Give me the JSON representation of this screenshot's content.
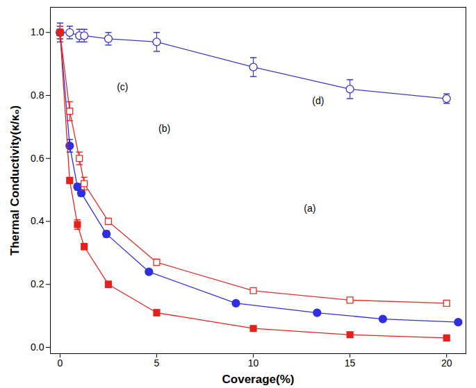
{
  "chart_data": {
    "type": "line",
    "x_label": "Coverage(%)",
    "y_label": "Thermal Conductivity(κ/κ₀)",
    "xlim": [
      -0.5,
      21
    ],
    "ylim": [
      -0.02,
      1.08
    ],
    "xticks": [
      0,
      5,
      10,
      15,
      20
    ],
    "yticks": [
      {
        "value": 0,
        "label": "0.0"
      },
      {
        "value": 0.2,
        "label": "0.2"
      },
      {
        "value": 0.4,
        "label": "0.4"
      },
      {
        "value": 0.6,
        "label": "0.6"
      },
      {
        "value": 0.8,
        "label": "0.8"
      },
      {
        "value": 1.0,
        "label": "1.0"
      }
    ],
    "grid": false,
    "series": [
      {
        "color": "#3a3ac0",
        "marker": "open-circle",
        "line_style": "solid",
        "x": [
          0,
          0.5,
          1,
          1.25,
          2.5,
          5,
          10,
          15,
          20
        ],
        "values": [
          1.0,
          1.0,
          0.99,
          0.99,
          0.98,
          0.97,
          0.89,
          0.82,
          0.79
        ],
        "errors": [
          0.03,
          0.02,
          0.02,
          0.02,
          0.02,
          0.03,
          0.03,
          0.03,
          0.015
        ]
      },
      {
        "color": "#2f2fe0",
        "marker": "circle",
        "line_style": "solid",
        "x": [
          0,
          0.5,
          0.9,
          1.1,
          2.4,
          4.6,
          9.1,
          13.3,
          16.7,
          20.6
        ],
        "values": [
          1.0,
          0.64,
          0.51,
          0.49,
          0.36,
          0.24,
          0.14,
          0.11,
          0.09,
          0.08
        ],
        "errors": [
          0.02,
          0.02,
          0.01,
          0.01,
          0.01,
          0.005,
          0.005,
          0.005,
          0.005,
          0.005
        ]
      },
      {
        "color": "#e0302a",
        "marker": "open-square",
        "line_style": "solid",
        "x": [
          0,
          0.5,
          1,
          1.25,
          2.5,
          5,
          10,
          15,
          20
        ],
        "values": [
          1.0,
          0.75,
          0.6,
          0.52,
          0.4,
          0.27,
          0.18,
          0.15,
          0.14
        ],
        "errors": [
          0.02,
          0.03,
          0.02,
          0.02,
          0.01,
          0.01,
          0.005,
          0.005,
          0.005
        ]
      },
      {
        "color": "#e8201c",
        "marker": "square",
        "line_style": "solid",
        "x": [
          0,
          0.5,
          0.9,
          1.25,
          2.5,
          5,
          10,
          15,
          20
        ],
        "values": [
          1.0,
          0.53,
          0.39,
          0.32,
          0.2,
          0.11,
          0.06,
          0.04,
          0.03
        ],
        "errors": [
          0.01,
          0.01,
          0.015,
          0.01,
          0.01,
          0.01,
          0.005,
          0.005,
          0.005
        ]
      }
    ],
    "annotations": [
      "(a)",
      "(b)",
      "(c)",
      "(d)"
    ]
  }
}
